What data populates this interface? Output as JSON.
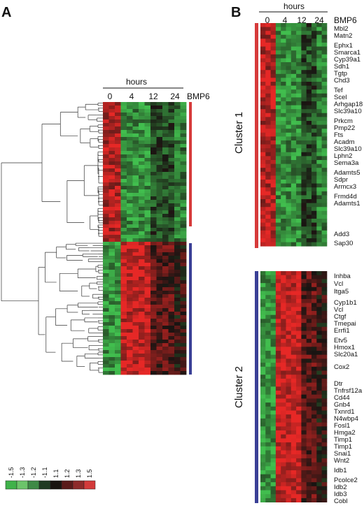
{
  "panel_a": {
    "letter": "A",
    "time_header": "hours",
    "time_points": [
      "0",
      "4",
      "12",
      "24"
    ],
    "treatment": "BMP6"
  },
  "panel_b": {
    "letter": "B",
    "time_header": "hours",
    "time_points": [
      "0",
      "4",
      "12",
      "24"
    ],
    "treatment": "BMP6",
    "cluster1": {
      "label": "Cluster 1",
      "bar_color": "#d63a3a",
      "genes": [
        "Mbl2",
        "Matn2",
        "Ephx1",
        "Smarca1",
        "Cyp39a1",
        "Sdh1",
        "Tgtp",
        "Chd3",
        "Tef",
        "Scel",
        "Arhgap18",
        "Slc39a10",
        "Prkcm",
        "Pmp22",
        "Fts",
        "Acadm",
        "Slc39a10",
        "Lphn2",
        "Sema3a",
        "Adamts5",
        "Sdpr",
        "Armcx3",
        "Frmd4d",
        "Adamts1",
        "Add3",
        "Sap30"
      ]
    },
    "cluster2": {
      "label": "Cluster 2",
      "bar_color": "#3a3f96",
      "genes": [
        "Inhba",
        "Vcl",
        "Itga5",
        "Cyp1b1",
        "Vcl",
        "Ctgf",
        "Tmepai",
        "Errfi1",
        "Etv5",
        "Hmox1",
        "Slc20a1",
        "Cox2",
        "Dtr",
        "Tnfrsf12a",
        "Cd44",
        "Gnb4",
        "Txnrd1",
        "N4wbp4",
        "Fosl1",
        "Hmga2",
        "Timp1",
        "Timp1",
        "Snai1",
        "Wnt2",
        "Idb1",
        "Pcolce2",
        "Idb2",
        "Idb3",
        "Cobl"
      ]
    }
  },
  "legend": {
    "values": [
      "-1.5",
      "-1.3",
      "-1.2",
      "-1.1",
      "1.1",
      "1.2",
      "1.3",
      "1.5"
    ],
    "colors": [
      "#3fb24a",
      "#6cc46a",
      "#3e8a46",
      "#1f3a22",
      "#1a1410",
      "#5a1a1a",
      "#8e2a2a",
      "#d33a3a"
    ]
  },
  "colors": {
    "up": "#e0302a",
    "down": "#3fb24a",
    "cluster1": "#d63a3a",
    "cluster2": "#3a3f96"
  }
}
